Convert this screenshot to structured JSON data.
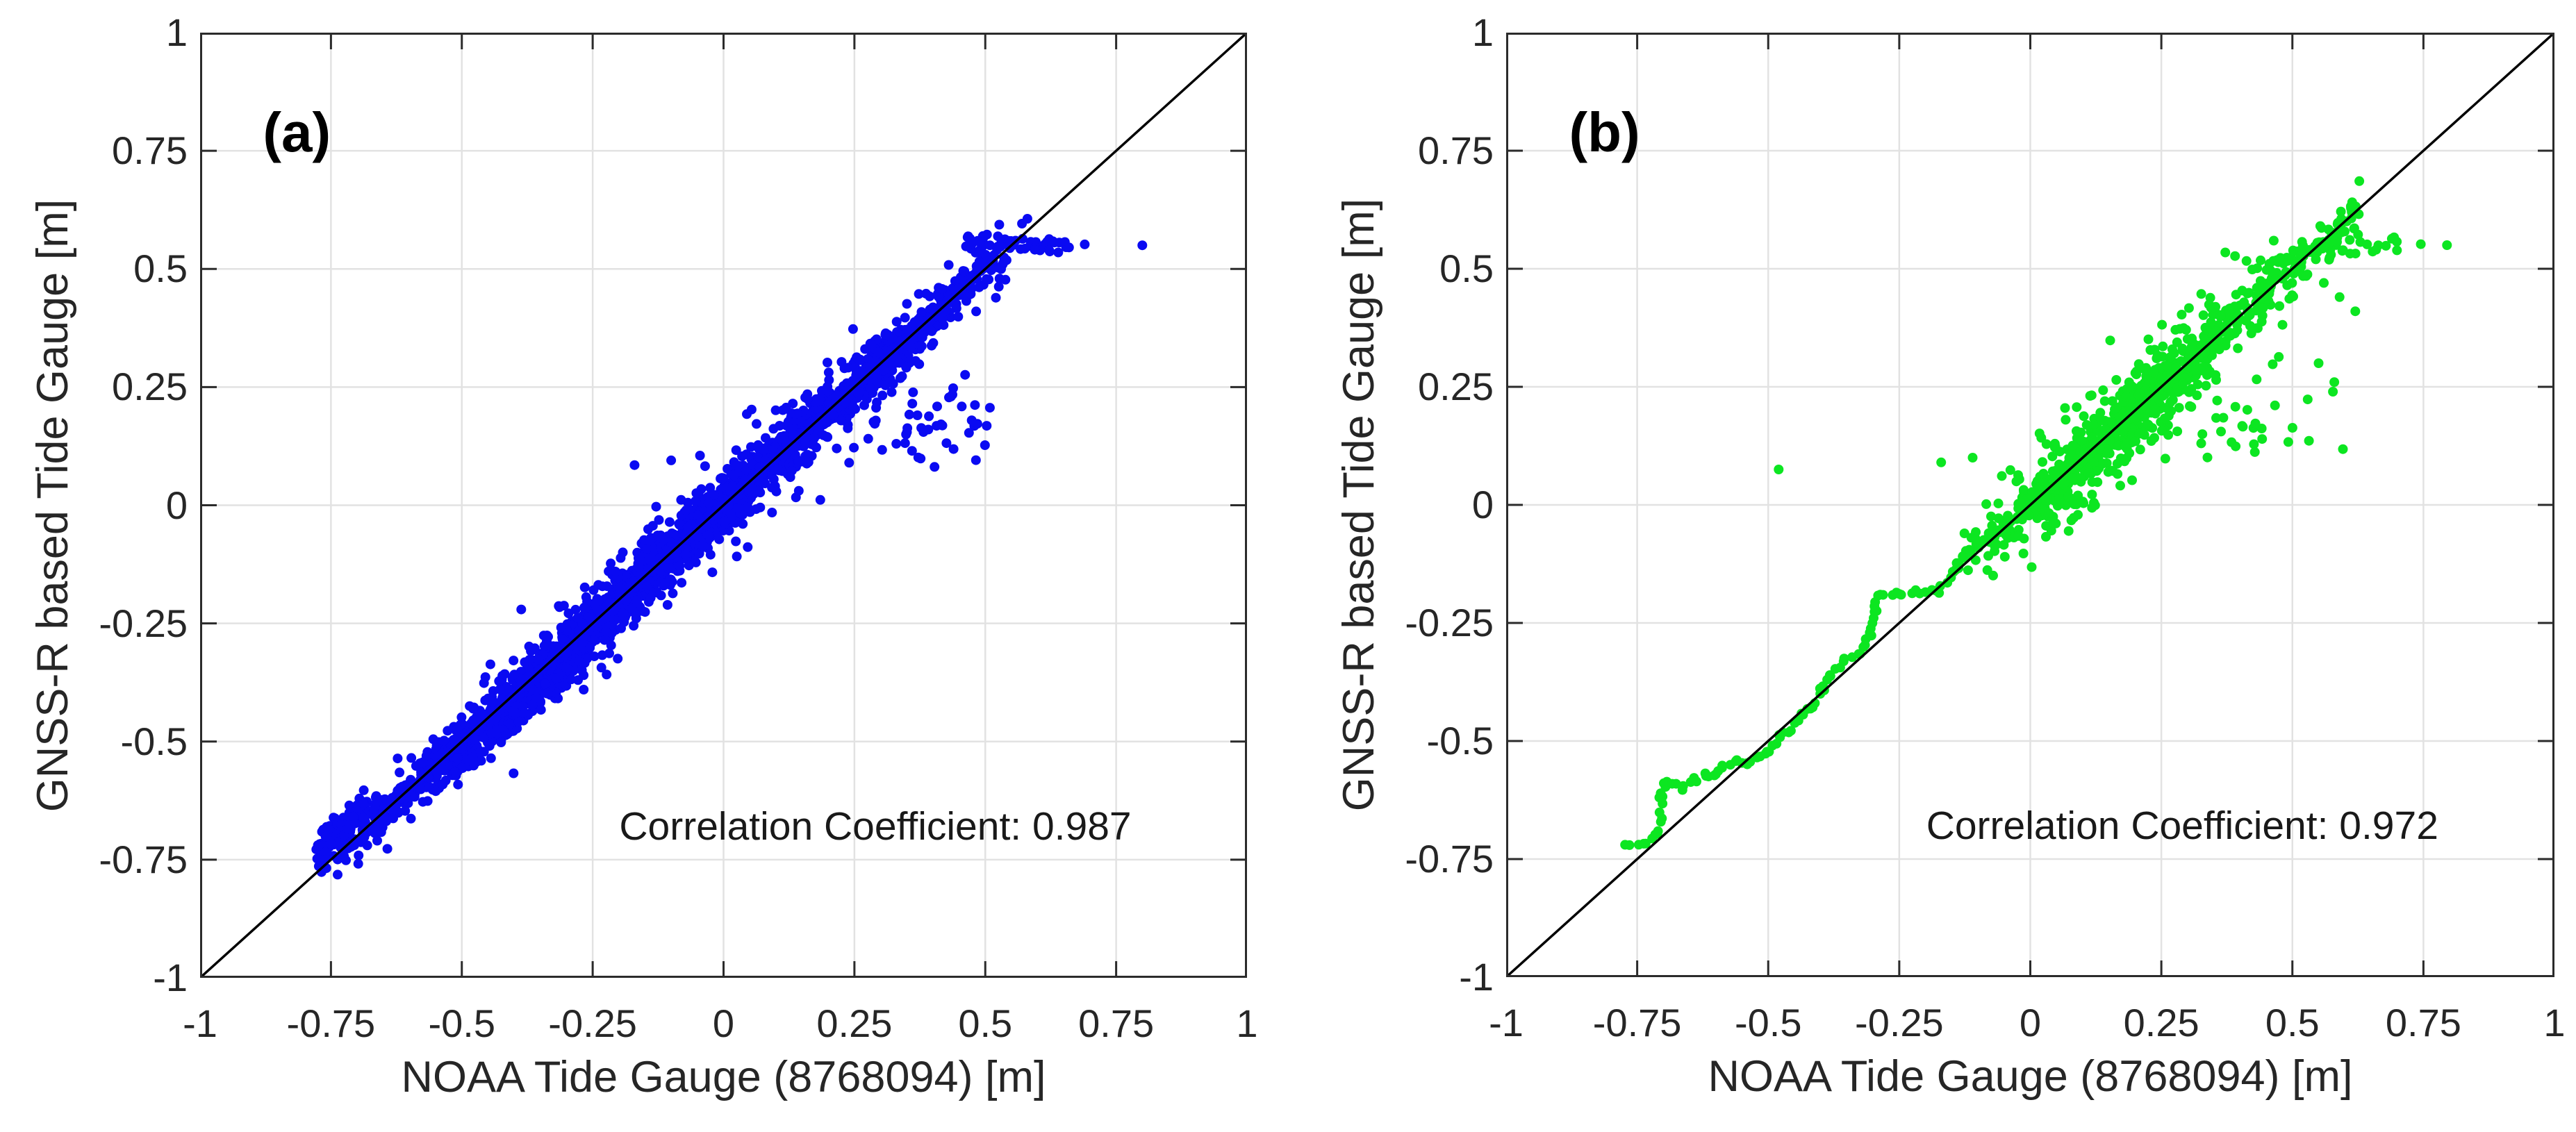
{
  "page": {
    "background": "#ffffff"
  },
  "colors": {
    "axes_frame": "#2b2b2b",
    "grid": "#e2e2e2",
    "identity_line": "#000000",
    "text": "#262626",
    "panel_a_marker": "#0a0af2",
    "panel_b_marker": "#0ce621"
  },
  "chart_data": [
    {
      "type": "scatter",
      "panel_label": "(a)",
      "xlabel": "NOAA Tide Gauge (8768094) [m]",
      "ylabel": "GNSS-R based Tide Gauge [m]",
      "annotation": "Correlation Coefficient: 0.987",
      "correlation_coefficient": 0.987,
      "xlim": [
        -1,
        1
      ],
      "ylim": [
        -1,
        1
      ],
      "xticks": [
        -1,
        -0.75,
        -0.5,
        -0.25,
        0,
        0.25,
        0.5,
        0.75,
        1
      ],
      "yticks": [
        -1,
        -0.75,
        -0.5,
        -0.25,
        0,
        0.25,
        0.5,
        0.75,
        1
      ],
      "xtick_labels": [
        "-1",
        "-0.75",
        "-0.5",
        "-0.25",
        "0",
        "0.25",
        "0.5",
        "0.75",
        "1"
      ],
      "ytick_labels": [
        "-1",
        "-0.75",
        "-0.5",
        "-0.25",
        "0",
        "0.25",
        "0.5",
        "0.75",
        "1"
      ],
      "grid": true,
      "legend": "none",
      "identity_line": {
        "from": [
          -1,
          -1
        ],
        "to": [
          1,
          1
        ]
      },
      "marker_color": "#0a0af2",
      "marker_radius_px": 7,
      "seed": 1337,
      "x_data_range": [
        -0.78,
        0.8
      ],
      "y_data_range": [
        -0.74,
        0.6
      ],
      "approx_n_points": 4100,
      "scatter_components": [
        {
          "type": "cloud",
          "n": 2000,
          "xmin": -0.78,
          "xmax": 0.6,
          "sd": 0.014,
          "dy": 0,
          "dist": "tri"
        },
        {
          "type": "cloud",
          "n": 1500,
          "xmin": -0.78,
          "xmax": 0.61,
          "sd": 0.033,
          "dy": 0,
          "dist": "tri"
        },
        {
          "type": "cloud",
          "n": 220,
          "xmin": -0.62,
          "xmax": 0.52,
          "sd": 0.062,
          "dy": 0,
          "dist": "tri"
        },
        {
          "type": "cloud",
          "n": 170,
          "xmin": -0.52,
          "xmax": -0.27,
          "sd": 0.013,
          "dy": -0.05,
          "dist": "uni"
        },
        {
          "type": "cloud",
          "n": 130,
          "xmin": -0.78,
          "xmax": -0.68,
          "sd": 0.014,
          "dy": 0.045,
          "dist": "uni"
        },
        {
          "type": "band",
          "n": 45,
          "xmin": 0.46,
          "xmax": 0.66,
          "y": 0.553,
          "sd": 0.01
        },
        {
          "type": "blob",
          "n": 45,
          "cx": 0.4,
          "cy": 0.18,
          "sdx": 0.075,
          "sdy": 0.05
        },
        {
          "type": "singles",
          "pts": [
            [
              0.69,
              0.552
            ],
            [
              0.8,
              0.55
            ],
            [
              -0.17,
              0.085
            ],
            [
              -0.1,
              0.095
            ],
            [
              -0.045,
              0.105
            ],
            [
              0.33,
              0.13
            ],
            [
              0.36,
              0.115
            ],
            [
              0.24,
              0.09
            ]
          ]
        }
      ]
    },
    {
      "type": "scatter",
      "panel_label": "(b)",
      "xlabel": "NOAA Tide Gauge (8768094) [m]",
      "ylabel": "GNSS-R based Tide Gauge [m]",
      "annotation": "Correlation Coefficient: 0.972",
      "correlation_coefficient": 0.972,
      "xlim": [
        -1,
        1
      ],
      "ylim": [
        -1,
        1
      ],
      "xticks": [
        -1,
        -0.75,
        -0.5,
        -0.25,
        0,
        0.25,
        0.5,
        0.75,
        1
      ],
      "yticks": [
        -1,
        -0.75,
        -0.5,
        -0.25,
        0,
        0.25,
        0.5,
        0.75,
        1
      ],
      "xtick_labels": [
        "-1",
        "-0.75",
        "-0.5",
        "-0.25",
        "0",
        "0.25",
        "0.5",
        "0.75",
        "1"
      ],
      "ytick_labels": [
        "-1",
        "-0.75",
        "-0.5",
        "-0.25",
        "0",
        "0.25",
        "0.5",
        "0.75",
        "1"
      ],
      "grid": true,
      "legend": "none",
      "identity_line": {
        "from": [
          -1,
          -1
        ],
        "to": [
          1,
          1
        ]
      },
      "marker_color": "#0ce621",
      "marker_radius_px": 7,
      "seed": 777,
      "x_data_range": [
        -0.78,
        0.8
      ],
      "y_data_range": [
        -0.72,
        0.6
      ],
      "approx_n_points": 1160,
      "scatter_components": [
        {
          "type": "path",
          "spacing": 0.013,
          "jitter": 0.005,
          "pts": [
            [
              -0.775,
              -0.715
            ],
            [
              -0.735,
              -0.72
            ],
            [
              -0.712,
              -0.7
            ],
            [
              -0.703,
              -0.62
            ],
            [
              -0.695,
              -0.585
            ],
            [
              -0.665,
              -0.6
            ],
            [
              -0.638,
              -0.583
            ],
            [
              -0.622,
              -0.572
            ],
            [
              -0.6,
              -0.574
            ],
            [
              -0.585,
              -0.553
            ],
            [
              -0.563,
              -0.545
            ],
            [
              -0.543,
              -0.55
            ],
            [
              -0.518,
              -0.533
            ],
            [
              -0.498,
              -0.525
            ],
            [
              -0.478,
              -0.49
            ],
            [
              -0.46,
              -0.478
            ],
            [
              -0.438,
              -0.44
            ],
            [
              -0.415,
              -0.428
            ],
            [
              -0.398,
              -0.39
            ],
            [
              -0.378,
              -0.362
            ],
            [
              -0.352,
              -0.33
            ],
            [
              -0.328,
              -0.312
            ],
            [
              -0.303,
              -0.272
            ],
            [
              -0.298,
              -0.225
            ],
            [
              -0.29,
              -0.19
            ],
            [
              -0.255,
              -0.19
            ],
            [
              -0.215,
              -0.185
            ],
            [
              -0.178,
              -0.182
            ],
            [
              -0.148,
              -0.142
            ],
            [
              -0.118,
              -0.103
            ]
          ]
        },
        {
          "type": "path",
          "spacing": 0.022,
          "jitter": 0.008,
          "pts": [
            [
              -0.115,
              -0.1
            ],
            [
              -0.05,
              -0.045
            ],
            [
              0.005,
              -0.002
            ]
          ]
        },
        {
          "type": "cloud",
          "n": 420,
          "xmin": -0.16,
          "xmax": 0.52,
          "sd": 0.022,
          "dy": 0,
          "dist": "tri"
        },
        {
          "type": "cloud",
          "n": 360,
          "xmin": -0.14,
          "xmax": 0.54,
          "sd": 0.048,
          "dy": 0,
          "dist": "tri"
        },
        {
          "type": "cloud",
          "n": 110,
          "xmin": -0.05,
          "xmax": 0.5,
          "sd": 0.08,
          "dy": 0,
          "dist": "tri"
        },
        {
          "type": "cloud",
          "n": 90,
          "xmin": 0.44,
          "xmax": 0.63,
          "sd": 0.026,
          "dy": 0,
          "dist": "uni"
        },
        {
          "type": "band",
          "n": 26,
          "xmin": 0.53,
          "xmax": 0.7,
          "y": 0.553,
          "sd": 0.01
        },
        {
          "type": "blob",
          "n": 30,
          "cx": 0.42,
          "cy": 0.19,
          "sdx": 0.07,
          "sdy": 0.045
        },
        {
          "type": "singles",
          "pts": [
            [
              0.745,
              0.552
            ],
            [
              0.795,
              0.55
            ],
            [
              0.56,
              0.47
            ],
            [
              0.59,
              0.44
            ],
            [
              0.62,
              0.41
            ],
            [
              0.55,
              0.3
            ],
            [
              0.58,
              0.26
            ],
            [
              -0.48,
              0.075
            ],
            [
              -0.17,
              0.09
            ],
            [
              -0.11,
              0.1
            ]
          ]
        }
      ]
    }
  ]
}
